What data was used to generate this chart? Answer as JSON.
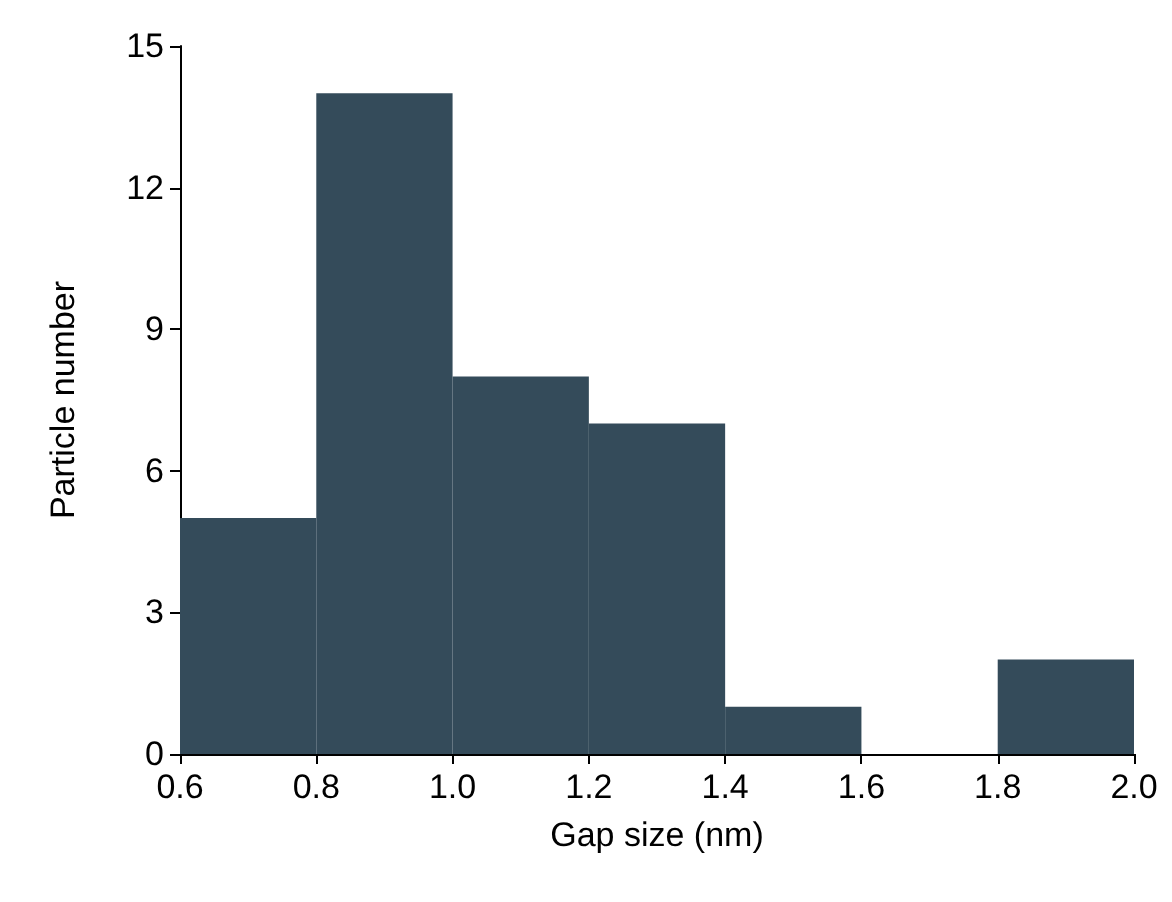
{
  "chart_data": {
    "type": "histogram",
    "xlabel": "Gap size (nm)",
    "ylabel": "Particle number",
    "bins": [
      0.6,
      0.8,
      1.0,
      1.2,
      1.4,
      1.6,
      1.8,
      2.0
    ],
    "values": [
      5,
      14,
      8,
      7,
      1,
      0,
      2
    ],
    "color": "#344b5a",
    "xlim": [
      0.6,
      2.0
    ],
    "xticks": [
      0.6,
      0.8,
      {
        "value": 1.0,
        "label": "1.0"
      },
      1.2,
      1.4,
      1.6,
      1.8,
      {
        "value": 2.0,
        "label": "2.0"
      }
    ],
    "ylim": [
      0,
      15
    ],
    "yticks": [
      0,
      3,
      6,
      9,
      12,
      15
    ],
    "grid": false
  }
}
